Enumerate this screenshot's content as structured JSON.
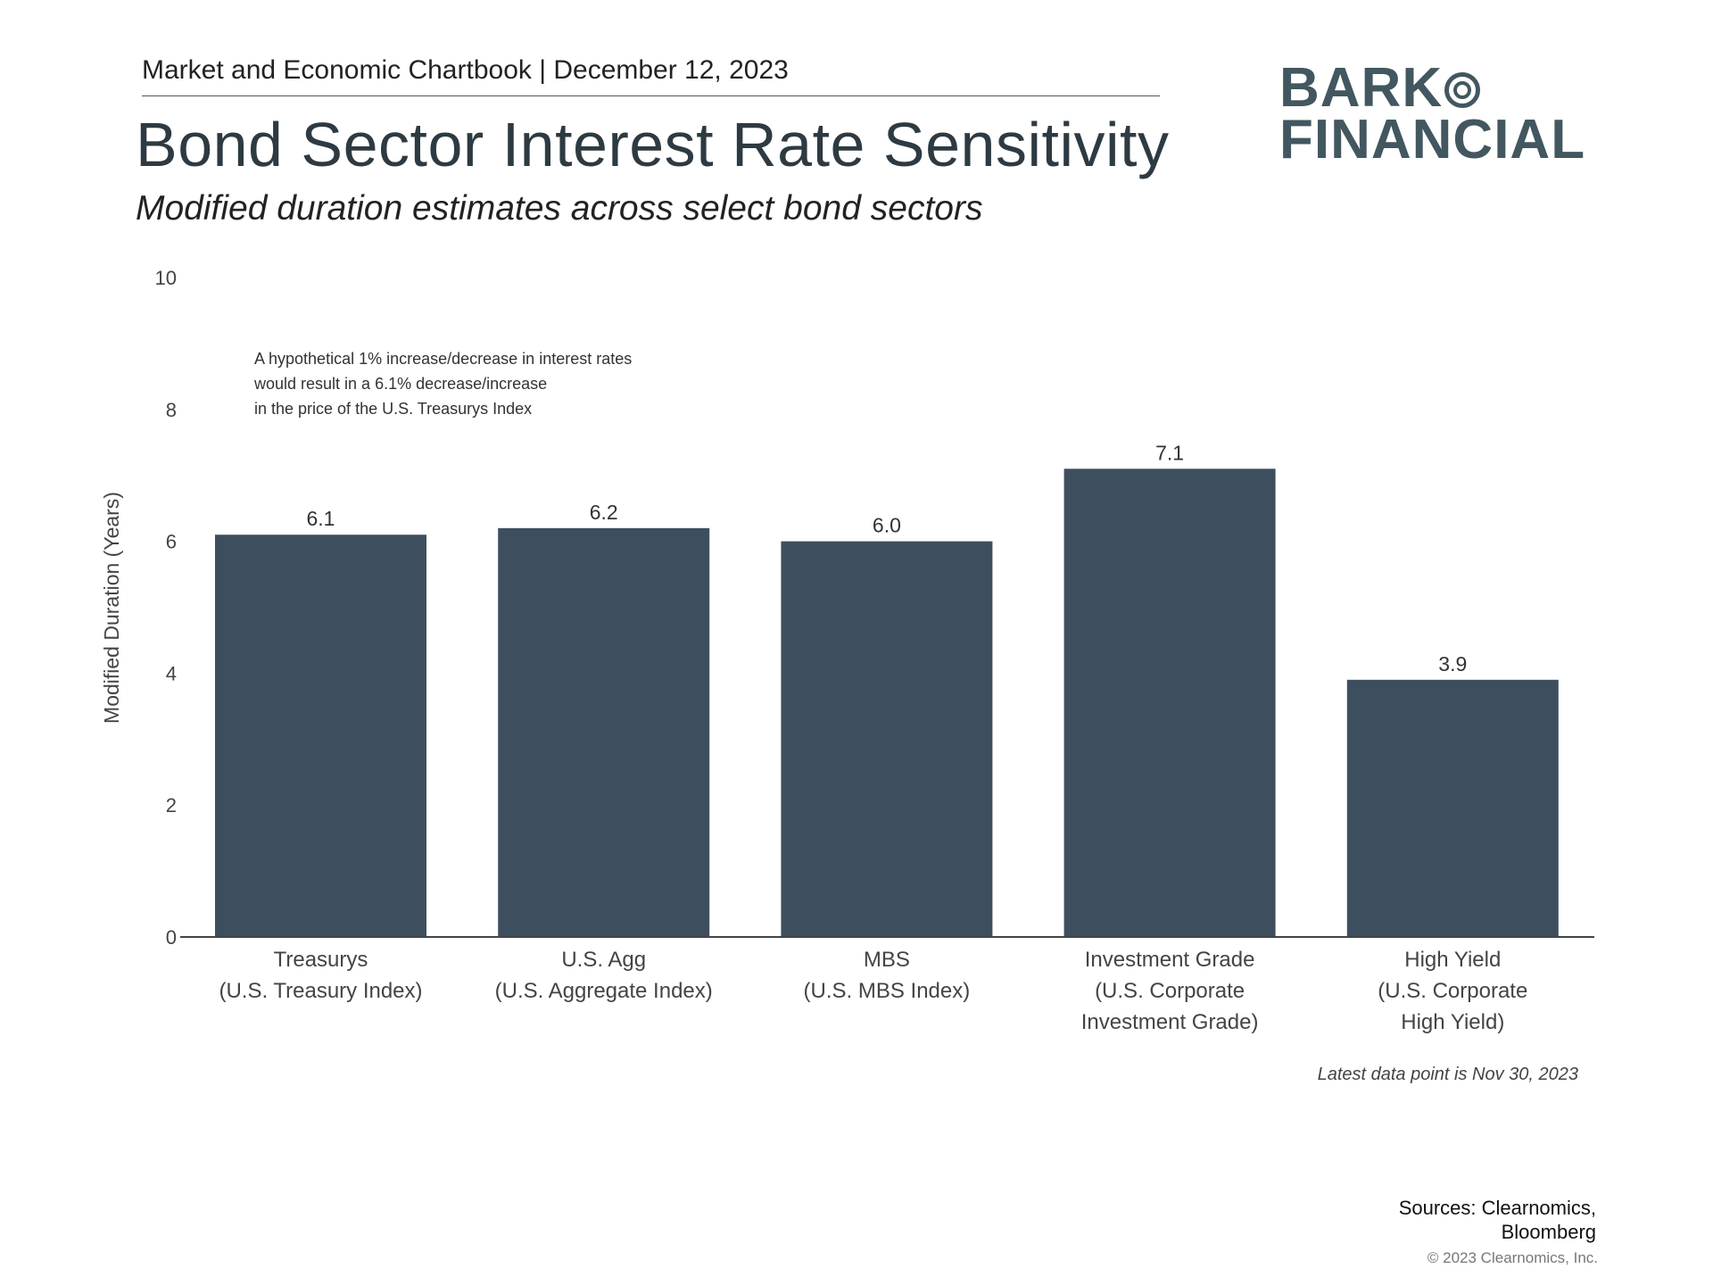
{
  "header": {
    "chartbook": "Market and Economic Chartbook | December 12, 2023",
    "title": "Bond Sector Interest Rate Sensitivity",
    "subtitle": "Modified duration estimates across select bond sectors"
  },
  "logo": {
    "line1": "BARK",
    "line2": "FINANCIAL",
    "color": "#42575f"
  },
  "annotation": [
    "A hypothetical 1% increase/decrease in interest rates",
    "would result in a 6.1% decrease/increase",
    "in the price of the U.S. Treasurys Index"
  ],
  "chart_data": {
    "type": "bar",
    "title": "",
    "ylabel": "Modified Duration (Years)",
    "xlabel": "",
    "ylim": [
      0,
      10
    ],
    "yticks": [
      0,
      2,
      4,
      6,
      8,
      10
    ],
    "grid": false,
    "bar_color": "#3d4f5e",
    "categories": [
      [
        "Treasurys",
        "(U.S. Treasury Index)"
      ],
      [
        "U.S. Agg",
        "(U.S. Aggregate Index)"
      ],
      [
        "MBS",
        "(U.S. MBS Index)"
      ],
      [
        "Investment Grade",
        "(U.S. Corporate",
        "Investment Grade)"
      ],
      [
        "High Yield",
        "(U.S. Corporate",
        "High Yield)"
      ]
    ],
    "values": [
      6.1,
      6.2,
      6.0,
      7.1,
      3.9
    ],
    "data_labels": [
      "6.1",
      "6.2",
      "6.0",
      "7.1",
      "3.9"
    ]
  },
  "footer": {
    "latest": "Latest data point is Nov 30, 2023",
    "sources_line1": "Sources: Clearnomics,",
    "sources_line2": "Bloomberg",
    "copyright": "© 2023 Clearnomics, Inc."
  }
}
